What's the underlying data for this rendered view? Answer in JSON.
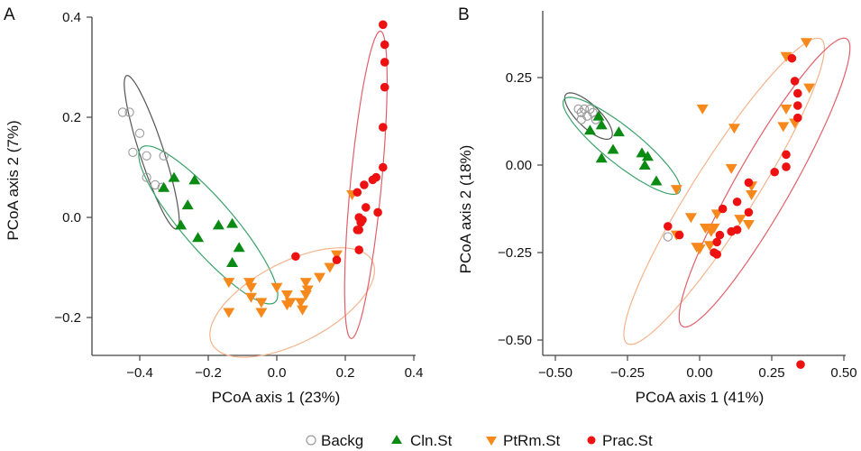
{
  "chart_data": [
    {
      "type": "scatter",
      "panel_label": "A",
      "xlabel": "PCoA axis 1 (23%)",
      "ylabel": "PCoA axis 2 (7%)",
      "xlim": [
        -0.52,
        0.42
      ],
      "ylim": [
        -0.27,
        0.42
      ],
      "xticks": [
        -0.4,
        -0.2,
        0.0,
        0.2,
        0.4
      ],
      "xtick_labels": [
        "−0.4",
        "−0.2",
        "0.0",
        "0.2",
        "0.4"
      ],
      "yticks": [
        -0.2,
        0.0,
        0.2,
        0.4
      ],
      "ytick_labels": [
        "−0.2",
        "0.0",
        "0.2",
        "0.4"
      ],
      "grid": false,
      "series": [
        {
          "name": "Backg",
          "points": [
            [
              -0.45,
              0.21
            ],
            [
              -0.43,
              0.21
            ],
            [
              -0.4,
              0.168
            ],
            [
              -0.42,
              0.13
            ],
            [
              -0.38,
              0.123
            ],
            [
              -0.33,
              0.123
            ],
            [
              -0.38,
              0.08
            ],
            [
              -0.355,
              0.065
            ],
            [
              -0.335,
              0.06
            ]
          ],
          "ellipse": {
            "center": [
              -0.365,
              0.13
            ],
            "semi_major": 0.17,
            "semi_minor": 0.033,
            "angle_deg": -64
          }
        },
        {
          "name": "Cln.St",
          "points": [
            [
              -0.33,
              0.06
            ],
            [
              -0.3,
              0.08
            ],
            [
              -0.24,
              0.075
            ],
            [
              -0.26,
              0.025
            ],
            [
              -0.28,
              -0.015
            ],
            [
              -0.17,
              -0.015
            ],
            [
              -0.13,
              -0.012
            ],
            [
              -0.23,
              -0.04
            ],
            [
              -0.11,
              -0.06
            ],
            [
              -0.13,
              -0.09
            ]
          ],
          "ellipse": {
            "center": [
              -0.2,
              -0.015
            ],
            "semi_major": 0.25,
            "semi_minor": 0.06,
            "angle_deg": -37
          }
        },
        {
          "name": "PtRm.St",
          "points": [
            [
              -0.14,
              -0.13
            ],
            [
              -0.08,
              -0.13
            ],
            [
              -0.075,
              -0.14
            ],
            [
              -0.075,
              -0.16
            ],
            [
              -0.045,
              -0.17
            ],
            [
              0.0,
              -0.14
            ],
            [
              0.03,
              -0.155
            ],
            [
              0.04,
              -0.17
            ],
            [
              0.03,
              -0.175
            ],
            [
              0.07,
              -0.17
            ],
            [
              0.075,
              -0.185
            ],
            [
              -0.14,
              -0.19
            ],
            [
              -0.045,
              -0.19
            ],
            [
              0.085,
              -0.13
            ],
            [
              0.09,
              -0.145
            ],
            [
              0.085,
              -0.155
            ],
            [
              0.125,
              -0.12
            ],
            [
              0.155,
              -0.1
            ],
            [
              0.175,
              -0.075
            ],
            [
              0.22,
              0.045
            ]
          ],
          "ellipse": {
            "center": [
              0.045,
              -0.17
            ],
            "semi_major": 0.25,
            "semi_minor": 0.085,
            "angle_deg": 17
          }
        },
        {
          "name": "Prac.St",
          "points": [
            [
              0.31,
              0.385
            ],
            [
              0.315,
              0.345
            ],
            [
              0.315,
              0.31
            ],
            [
              0.315,
              0.26
            ],
            [
              0.31,
              0.18
            ],
            [
              0.31,
              0.1
            ],
            [
              0.29,
              0.08
            ],
            [
              0.28,
              0.075
            ],
            [
              0.255,
              0.065
            ],
            [
              0.235,
              0.05
            ],
            [
              0.26,
              0.02
            ],
            [
              0.295,
              0.01
            ],
            [
              0.24,
              0.0
            ],
            [
              0.25,
              -0.005
            ],
            [
              0.245,
              -0.01
            ],
            [
              0.24,
              -0.025
            ],
            [
              0.235,
              -0.025
            ],
            [
              0.24,
              -0.065
            ],
            [
              0.055,
              -0.078
            ],
            [
              0.175,
              -0.085
            ]
          ],
          "ellipse": {
            "center": [
              0.26,
              0.065
            ],
            "semi_major": 0.31,
            "semi_minor": 0.045,
            "angle_deg": 82
          }
        }
      ]
    },
    {
      "type": "scatter",
      "panel_label": "B",
      "xlabel": "PCoA axis 1 (41%)",
      "ylabel": "PCoA axis 2 (18%)",
      "xlim": [
        -0.55,
        0.52
      ],
      "ylim": [
        -0.55,
        0.45
      ],
      "xticks": [
        -0.5,
        -0.25,
        0.0,
        0.25,
        0.5
      ],
      "xtick_labels": [
        "−0.50",
        "−0.25",
        "0.00",
        "0.25",
        "0.50"
      ],
      "yticks": [
        -0.5,
        -0.25,
        0.0,
        0.25
      ],
      "ytick_labels": [
        "−0.50",
        "−0.25",
        "0.00",
        "0.25"
      ],
      "grid": false,
      "series": [
        {
          "name": "Backg",
          "points": [
            [
              -0.42,
              0.16
            ],
            [
              -0.41,
              0.15
            ],
            [
              -0.4,
              0.16
            ],
            [
              -0.38,
              0.16
            ],
            [
              -0.39,
              0.14
            ],
            [
              -0.41,
              0.13
            ],
            [
              -0.37,
              0.15
            ],
            [
              -0.36,
              0.13
            ],
            [
              -0.11,
              -0.205
            ]
          ],
          "ellipse": {
            "center": [
              -0.385,
              0.14
            ],
            "semi_major": 0.1,
            "semi_minor": 0.035,
            "angle_deg": -37
          }
        },
        {
          "name": "Cln.St",
          "points": [
            [
              -0.35,
              0.14
            ],
            [
              -0.34,
              0.115
            ],
            [
              -0.38,
              0.1
            ],
            [
              -0.28,
              0.095
            ],
            [
              -0.3,
              0.045
            ],
            [
              -0.34,
              0.02
            ],
            [
              -0.2,
              0.035
            ],
            [
              -0.18,
              0.025
            ],
            [
              -0.19,
              0.0
            ],
            [
              -0.15,
              -0.045
            ]
          ],
          "ellipse": {
            "center": [
              -0.27,
              0.055
            ],
            "semi_major": 0.24,
            "semi_minor": 0.055,
            "angle_deg": -33
          }
        },
        {
          "name": "PtRm.St",
          "points": [
            [
              0.37,
              0.35
            ],
            [
              0.3,
              0.31
            ],
            [
              0.38,
              0.22
            ],
            [
              0.3,
              0.16
            ],
            [
              0.29,
              0.11
            ],
            [
              0.33,
              0.12
            ],
            [
              0.01,
              0.16
            ],
            [
              0.12,
              0.105
            ],
            [
              0.11,
              -0.01
            ],
            [
              -0.08,
              -0.07
            ],
            [
              0.18,
              -0.06
            ],
            [
              0.18,
              -0.085
            ],
            [
              0.17,
              -0.17
            ],
            [
              -0.03,
              -0.15
            ],
            [
              0.06,
              -0.14
            ],
            [
              0.14,
              -0.155
            ],
            [
              0.05,
              -0.18
            ],
            [
              0.02,
              -0.18
            ],
            [
              0.04,
              -0.19
            ],
            [
              -0.08,
              -0.2
            ],
            [
              -0.01,
              -0.235
            ],
            [
              0.0,
              -0.24
            ],
            [
              0.035,
              -0.23
            ]
          ],
          "ellipse": {
            "center": [
              0.085,
              -0.075
            ],
            "semi_major": 0.55,
            "semi_minor": 0.1,
            "angle_deg": 52
          }
        },
        {
          "name": "Prac.St",
          "points": [
            [
              0.32,
              0.305
            ],
            [
              0.33,
              0.24
            ],
            [
              0.34,
              0.205
            ],
            [
              0.34,
              0.17
            ],
            [
              0.34,
              0.135
            ],
            [
              0.3,
              0.03
            ],
            [
              0.3,
              -0.005
            ],
            [
              0.26,
              -0.02
            ],
            [
              0.17,
              -0.05
            ],
            [
              0.17,
              -0.135
            ],
            [
              0.13,
              -0.105
            ],
            [
              0.08,
              -0.125
            ],
            [
              0.13,
              -0.185
            ],
            [
              0.11,
              -0.19
            ],
            [
              0.07,
              -0.2
            ],
            [
              0.06,
              -0.22
            ],
            [
              0.05,
              -0.25
            ],
            [
              0.06,
              -0.255
            ],
            [
              -0.11,
              -0.175
            ],
            [
              -0.07,
              -0.2
            ],
            [
              0.35,
              -0.57
            ]
          ],
          "ellipse": {
            "center": [
              0.225,
              -0.05
            ],
            "semi_major": 0.5,
            "semi_minor": 0.09,
            "angle_deg": 55
          }
        }
      ]
    }
  ],
  "legend": {
    "placement": "bottom-center",
    "items": [
      {
        "name": "Backg",
        "marker": "open-circle",
        "color": "#9a9a9a"
      },
      {
        "name": "Cln.St",
        "marker": "triangle-up",
        "color": "#0b8a14"
      },
      {
        "name": "PtRm.St",
        "marker": "triangle-down",
        "color": "#f7891c"
      },
      {
        "name": "Prac.St",
        "marker": "filled-circle",
        "color": "#ee1111"
      }
    ]
  },
  "colors": {
    "Backg": "#9a9a9a",
    "Backg_ellipse": "#555555",
    "Cln.St": "#0b8a14",
    "Cln.St_ellipse": "#3aa36a",
    "PtRm.St": "#f7891c",
    "PtRm.St_ellipse": "#f4b48c",
    "Prac.St": "#ee1111",
    "Prac.St_ellipse": "#e0606a"
  }
}
